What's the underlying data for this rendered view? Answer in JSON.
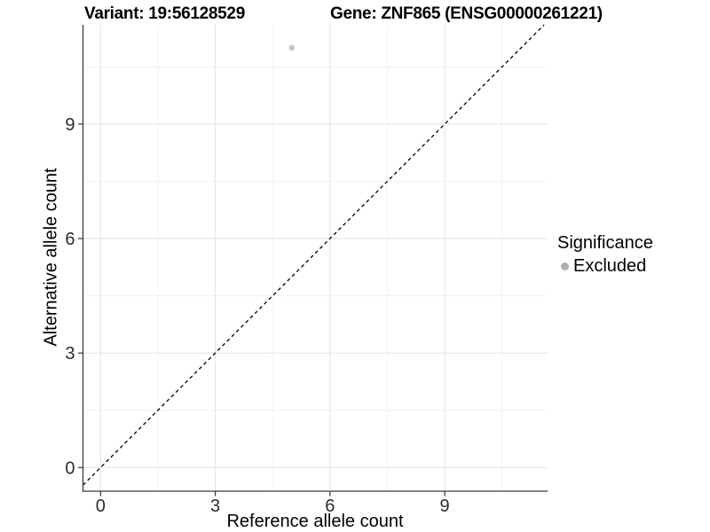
{
  "header": {
    "variant_title": "Variant: 19:56128529",
    "gene_title": "Gene: ZNF865 (ENSG00000261221)"
  },
  "chart_data": {
    "type": "scatter",
    "xlabel": "Reference allele count",
    "ylabel": "Alternative allele count",
    "xlim": [
      -0.46,
      11.69
    ],
    "ylim": [
      -0.62,
      11.6
    ],
    "xticks": [
      0,
      3,
      6,
      9
    ],
    "yticks": [
      0,
      3,
      6,
      9
    ],
    "xticks_minor": [
      1.5,
      4.5,
      7.5,
      10.5
    ],
    "yticks_minor": [
      1.5,
      4.5,
      7.5,
      10.5
    ],
    "grid": "major+minor",
    "points": [
      {
        "x": 5,
        "y": 11,
        "series": "Excluded",
        "color": "#c4c4c4",
        "radius": 3.2
      }
    ],
    "reference_line": {
      "slope": 1,
      "intercept": 0,
      "style": "dashed",
      "color": "#000000"
    },
    "legend": {
      "title": "Significance",
      "position": "right",
      "items": [
        {
          "label": "Excluded",
          "color": "#aeaeae"
        }
      ]
    }
  },
  "colors": {
    "grid_major": "#e4e4e4",
    "grid_minor": "#efefef",
    "axis_line": "#3a3a3a",
    "tick_mark": "#333333",
    "tick_label": "#2b2b2b",
    "text": "#000000"
  }
}
